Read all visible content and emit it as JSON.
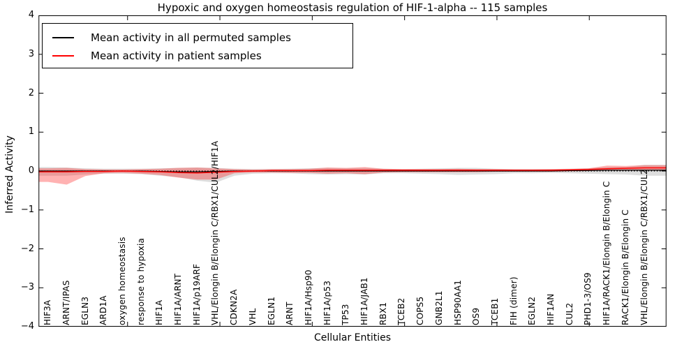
{
  "title": "Hypoxic and oxygen homeostasis regulation of HIF-1-alpha -- 115 samples",
  "axes": {
    "ylabel": "Inferred Activity",
    "xlabel": "Cellular Entities",
    "ytick_labels": [
      "4",
      "3",
      "2",
      "1",
      "0",
      "−1",
      "−2",
      "−3",
      "−4"
    ]
  },
  "legend": {
    "entries": [
      {
        "label": "Mean activity in all permuted samples",
        "color": "#000000"
      },
      {
        "label": "Mean activity in patient samples",
        "color": "#ff0000"
      }
    ]
  },
  "colors": {
    "permuted_line": "#000000",
    "patient_line": "#ff0000",
    "permuted_band": "rgba(0,0,0,0.13)",
    "patient_band": "rgba(255,0,0,0.30)",
    "zero_line": "#000000",
    "frame": "#000000"
  },
  "chart_data": {
    "type": "line",
    "title": "Hypoxic and oxygen homeostasis regulation of HIF-1-alpha -- 115 samples",
    "xlabel": "Cellular Entities",
    "ylabel": "Inferred Activity",
    "ylim": [
      -4,
      4
    ],
    "yticks": [
      4,
      3,
      2,
      1,
      0,
      -1,
      -2,
      -3,
      -4
    ],
    "grid": false,
    "legend_position": "upper left",
    "zero_line": {
      "y": 0,
      "style": "dotted",
      "color": "#000000"
    },
    "categories": [
      "HIF3A",
      "ARNT/IPAS",
      "EGLN3",
      "ARD1A",
      "oxygen homeostasis",
      "response to hypoxia",
      "HIF1A",
      "HIF1A/ARNT",
      "HIF1A/p19ARF",
      "VHL/Elongin B/Elongin C/RBX1/CUL2/HIF1A",
      "CDKN2A",
      "VHL",
      "EGLN1",
      "ARNT",
      "HIF1A/Hsp90",
      "HIF1A/p53",
      "TP53",
      "HIF1A/JAB1",
      "RBX1",
      "TCEB2",
      "COPS5",
      "GNB2L1",
      "HSP90AA1",
      "OS9",
      "TCEB1",
      "FIH (dimer)",
      "EGLN2",
      "HIF1AN",
      "CUL2",
      "PHD1-3/OS9",
      "HIF1A/RACK1/Elongin B/Elongin C",
      "RACK1/Elongin B/Elongin C",
      "VHL/Elongin B/Elongin C/RBX1/CUL2"
    ],
    "series": [
      {
        "name": "Mean activity in all permuted samples",
        "color": "#000000",
        "values": [
          0,
          0,
          0,
          0,
          0,
          0,
          -0.01,
          -0.02,
          -0.02,
          -0.01,
          0,
          0,
          0,
          0,
          0,
          0,
          0,
          0,
          0,
          0,
          0,
          0,
          0,
          0,
          0,
          0,
          0,
          0,
          0.01,
          0.01,
          0.02,
          0.02,
          0.02
        ],
        "band_upper": [
          0.1,
          0.09,
          0.07,
          0.06,
          0.06,
          0.06,
          0.07,
          0.08,
          0.09,
          0.08,
          0.06,
          0.05,
          0.05,
          0.06,
          0.07,
          0.08,
          0.07,
          0.08,
          0.06,
          0.05,
          0.06,
          0.07,
          0.08,
          0.08,
          0.06,
          0.05,
          0.05,
          0.05,
          0.06,
          0.07,
          0.1,
          0.1,
          0.16
        ],
        "band_lower": [
          -0.12,
          -0.12,
          -0.09,
          -0.07,
          -0.07,
          -0.08,
          -0.12,
          -0.16,
          -0.25,
          -0.3,
          -0.12,
          -0.07,
          -0.06,
          -0.06,
          -0.08,
          -0.09,
          -0.08,
          -0.09,
          -0.06,
          -0.06,
          -0.07,
          -0.08,
          -0.1,
          -0.09,
          -0.08,
          -0.06,
          -0.06,
          -0.05,
          -0.06,
          -0.07,
          -0.08,
          -0.09,
          -0.12
        ]
      },
      {
        "name": "Mean activity in patient samples",
        "color": "#ff0000",
        "values": [
          -0.02,
          -0.02,
          -0.01,
          -0.01,
          0.0,
          -0.01,
          -0.02,
          -0.04,
          -0.05,
          -0.03,
          -0.01,
          0.0,
          0.01,
          0.01,
          0.01,
          0.02,
          0.02,
          0.02,
          0.02,
          0.02,
          0.02,
          0.02,
          0.02,
          0.02,
          0.02,
          0.02,
          0.02,
          0.02,
          0.03,
          0.04,
          0.06,
          0.07,
          0.08
        ],
        "band_upper": [
          0.07,
          0.08,
          0.05,
          0.04,
          0.04,
          0.05,
          0.06,
          0.08,
          0.09,
          0.07,
          0.05,
          0.04,
          0.05,
          0.05,
          0.06,
          0.09,
          0.08,
          0.1,
          0.06,
          0.05,
          0.05,
          0.05,
          0.06,
          0.05,
          0.05,
          0.04,
          0.04,
          0.05,
          0.05,
          0.07,
          0.14,
          0.13,
          0.15
        ],
        "band_lower": [
          -0.28,
          -0.35,
          -0.13,
          -0.06,
          -0.05,
          -0.07,
          -0.1,
          -0.17,
          -0.22,
          -0.22,
          -0.06,
          -0.04,
          -0.04,
          -0.05,
          -0.05,
          -0.07,
          -0.06,
          -0.08,
          -0.04,
          -0.03,
          -0.03,
          -0.03,
          -0.03,
          -0.03,
          -0.02,
          -0.02,
          -0.02,
          -0.02,
          -0.01,
          0.0,
          0.01,
          0.02,
          0.02
        ]
      }
    ]
  }
}
